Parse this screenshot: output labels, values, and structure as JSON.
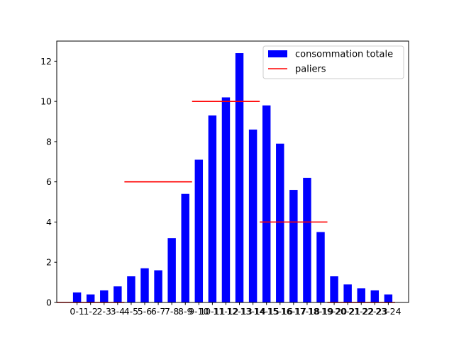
{
  "chart_data": {
    "type": "bar",
    "categories": [
      "0-1",
      "1-2",
      "2-3",
      "3-4",
      "4-5",
      "5-6",
      "6-7",
      "7-8",
      "8-9",
      "9-10",
      "10-11",
      "11-12",
      "12-13",
      "13-14",
      "14-15",
      "15-16",
      "16-17",
      "17-18",
      "18-19",
      "19-20",
      "20-21",
      "21-22",
      "22-23",
      "23-24"
    ],
    "series": [
      {
        "name": "consommation totale",
        "color": "#0000ff",
        "values": [
          0.5,
          0.4,
          0.6,
          0.8,
          1.3,
          1.7,
          1.6,
          3.2,
          5.4,
          7.1,
          9.3,
          10.2,
          12.4,
          8.6,
          9.8,
          7.9,
          5.6,
          6.2,
          3.5,
          1.3,
          0.9,
          0.7,
          0.6,
          0.4
        ]
      }
    ],
    "steps": {
      "name": "paliers",
      "color": "#ff0000",
      "segments": [
        {
          "x_start": -1.5,
          "x_end": 3.5,
          "value": 0
        },
        {
          "x_start": 3.5,
          "x_end": 8.5,
          "value": 6
        },
        {
          "x_start": 8.5,
          "x_end": 13.5,
          "value": 10
        },
        {
          "x_start": 13.5,
          "x_end": 18.5,
          "value": 4
        },
        {
          "x_start": 18.5,
          "x_end": 23.5,
          "value": 0
        }
      ]
    },
    "title": "",
    "xlabel": "",
    "ylabel": "",
    "ylim": [
      0,
      13
    ],
    "xlim": [
      -1.5,
      24.5
    ],
    "yticks": [
      0,
      2,
      4,
      6,
      8,
      10,
      12
    ],
    "grid": false,
    "legend_position": "top-right"
  }
}
